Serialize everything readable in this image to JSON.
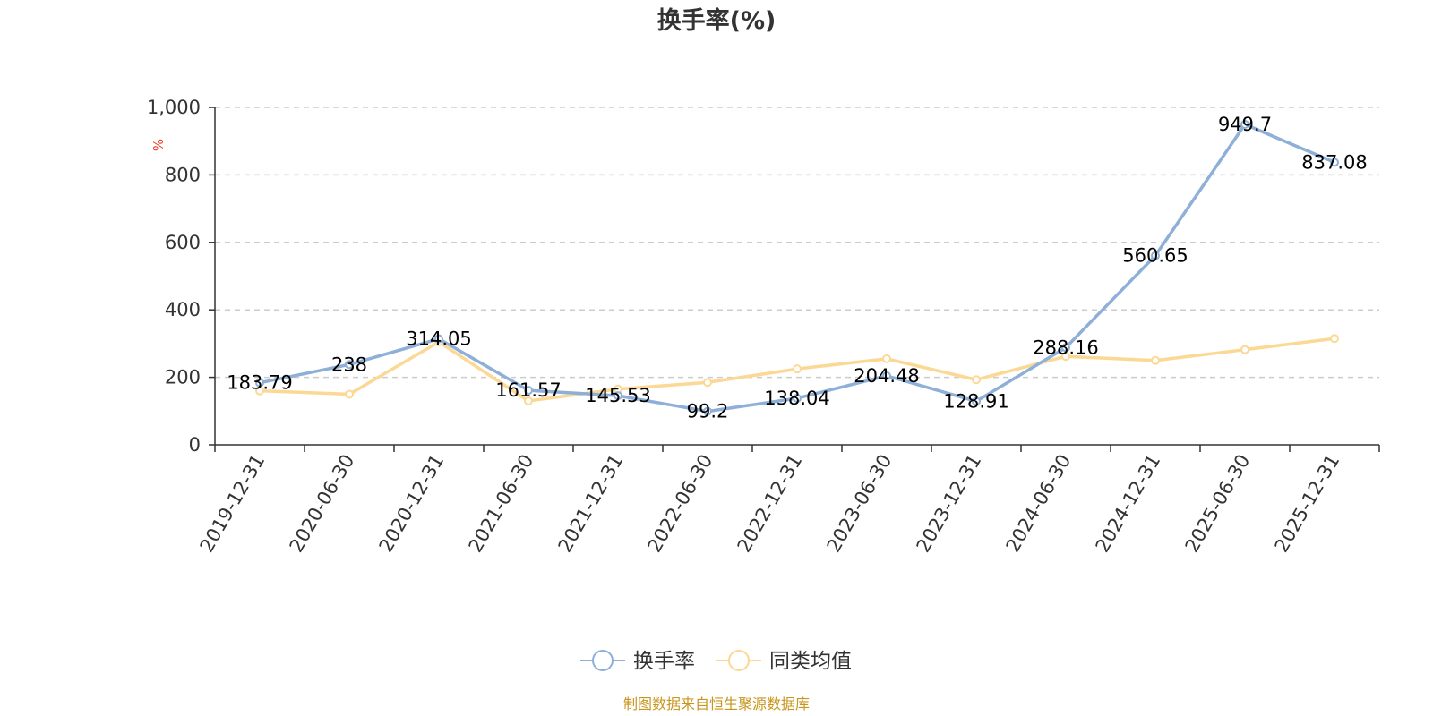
{
  "chart_data": {
    "type": "line",
    "title": "换手率(%)",
    "ylabel": "%",
    "ylim": [
      0,
      1000
    ],
    "yticks": [
      "0",
      "200",
      "400",
      "600",
      "800",
      "1,000"
    ],
    "y_tick_values": [
      0,
      200,
      400,
      600,
      800,
      1000
    ],
    "categories": [
      "2019-12-31",
      "2020-06-30",
      "2020-12-31",
      "2021-06-30",
      "2021-12-31",
      "2022-06-30",
      "2022-12-31",
      "2023-06-30",
      "2023-12-31",
      "2024-06-30",
      "2024-12-31",
      "2025-06-30",
      "2025-12-31"
    ],
    "series": [
      {
        "name": "换手率",
        "color": "#8eb0d8",
        "values": [
          183.79,
          238,
          314.05,
          161.57,
          145.53,
          99.2,
          138.04,
          204.48,
          128.91,
          288.16,
          560.65,
          949.7,
          837.08
        ],
        "labels": [
          "183.79",
          "238",
          "314.05",
          "161.57",
          "145.53",
          "99.2",
          "138.04",
          "204.48",
          "128.91",
          "288.16",
          "560.65",
          "949.7",
          "837.08"
        ]
      },
      {
        "name": "同类均值",
        "color": "#fbd894",
        "values": [
          160,
          150,
          305,
          130,
          165,
          185,
          225,
          255,
          193,
          262,
          250,
          282,
          315
        ]
      }
    ],
    "grid": true,
    "legend_position": "bottom"
  },
  "source_text": "制图数据来自恒生聚源数据库",
  "colors": {
    "axis": "#333333",
    "grid": "#cccccc",
    "unit_label": "#e8412c",
    "source": "#c8961e"
  }
}
